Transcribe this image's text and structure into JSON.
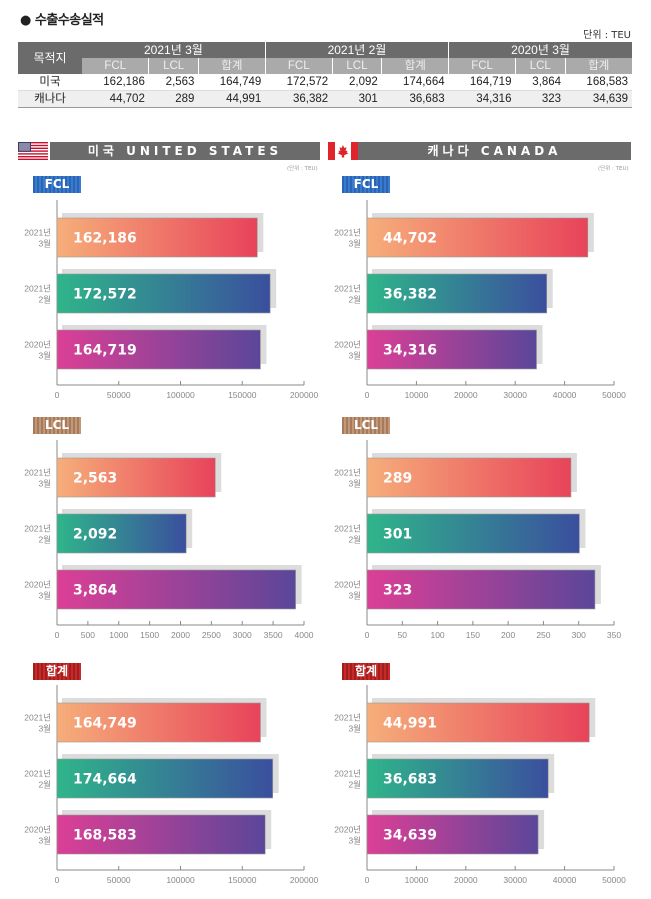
{
  "page": {
    "title": "● 수출수송실적",
    "unit": "단위 : TEU"
  },
  "table": {
    "dest_header": "목적지",
    "periods": [
      "2021년 3월",
      "2021년 2월",
      "2020년 3월"
    ],
    "sub_headers": [
      "FCL",
      "LCL",
      "합계"
    ],
    "rows": [
      {
        "name": "미국",
        "values": [
          "162,186",
          "2,563",
          "164,749",
          "172,572",
          "2,092",
          "174,664",
          "164,719",
          "3,864",
          "168,583"
        ]
      },
      {
        "name": "캐나다",
        "values": [
          "44,702",
          "289",
          "44,991",
          "36,382",
          "301",
          "36,683",
          "34,316",
          "323",
          "34,639"
        ]
      }
    ]
  },
  "sections": {
    "us": {
      "title": "미국 UNITED STATES",
      "unit": "(단위 : TEU)"
    },
    "ca": {
      "title": "캐나다 CANADA",
      "unit": "(단위 : TEU)"
    }
  },
  "badges": {
    "fcl": "FCL",
    "lcl": "LCL",
    "total": "합계"
  },
  "colors": {
    "header_gray": "#6b6b6b",
    "subheader_gray": "#aaaaaa",
    "bar1": [
      "#f6ae7a",
      "#e8435a"
    ],
    "bar2": [
      "#2fb58a",
      "#3a4f9e"
    ],
    "bar3": [
      "#dc3f96",
      "#5b4699"
    ],
    "shadow": "#dcdcdc",
    "axis": "#888888"
  },
  "chart_data": [
    {
      "id": "us-fcl",
      "type": "bar",
      "orientation": "horizontal",
      "title": "미국 FCL",
      "categories": [
        "2021년 3월",
        "2021년 2월",
        "2020년 3월"
      ],
      "values": [
        162186,
        172572,
        164719
      ],
      "labels": [
        "162,186",
        "172,572",
        "164,719"
      ],
      "xlim": [
        0,
        200000
      ],
      "ticks": [
        0,
        50000,
        100000,
        150000,
        200000
      ]
    },
    {
      "id": "ca-fcl",
      "type": "bar",
      "orientation": "horizontal",
      "title": "캐나다 FCL",
      "categories": [
        "2021년 3월",
        "2021년 2월",
        "2020년 3월"
      ],
      "values": [
        44702,
        36382,
        34316
      ],
      "labels": [
        "44,702",
        "36,382",
        "34,316"
      ],
      "xlim": [
        0,
        50000
      ],
      "ticks": [
        0,
        10000,
        20000,
        30000,
        40000,
        50000
      ]
    },
    {
      "id": "us-lcl",
      "type": "bar",
      "orientation": "horizontal",
      "title": "미국 LCL",
      "categories": [
        "2021년 3월",
        "2021년 2월",
        "2020년 3월"
      ],
      "values": [
        2563,
        2092,
        3864
      ],
      "labels": [
        "2,563",
        "2,092",
        "3,864"
      ],
      "xlim": [
        0,
        4000
      ],
      "ticks": [
        0,
        500,
        1000,
        1500,
        2000,
        2500,
        3000,
        3500,
        4000
      ]
    },
    {
      "id": "ca-lcl",
      "type": "bar",
      "orientation": "horizontal",
      "title": "캐나다 LCL",
      "categories": [
        "2021년 3월",
        "2021년 2월",
        "2020년 3월"
      ],
      "values": [
        289,
        301,
        323
      ],
      "labels": [
        "289",
        "301",
        "323"
      ],
      "xlim": [
        0,
        350
      ],
      "ticks": [
        0,
        50,
        100,
        150,
        200,
        250,
        300,
        350
      ]
    },
    {
      "id": "us-total",
      "type": "bar",
      "orientation": "horizontal",
      "title": "미국 합계",
      "categories": [
        "2021년 3월",
        "2021년 2월",
        "2020년 3월"
      ],
      "values": [
        164749,
        174664,
        168583
      ],
      "labels": [
        "164,749",
        "174,664",
        "168,583"
      ],
      "xlim": [
        0,
        200000
      ],
      "ticks": [
        0,
        50000,
        100000,
        150000,
        200000
      ]
    },
    {
      "id": "ca-total",
      "type": "bar",
      "orientation": "horizontal",
      "title": "캐나다 합계",
      "categories": [
        "2021년 3월",
        "2021년 2월",
        "2020년 3월"
      ],
      "values": [
        44991,
        36683,
        34639
      ],
      "labels": [
        "44,991",
        "36,683",
        "34,639"
      ],
      "xlim": [
        0,
        50000
      ],
      "ticks": [
        0,
        10000,
        20000,
        30000,
        40000,
        50000
      ]
    }
  ]
}
